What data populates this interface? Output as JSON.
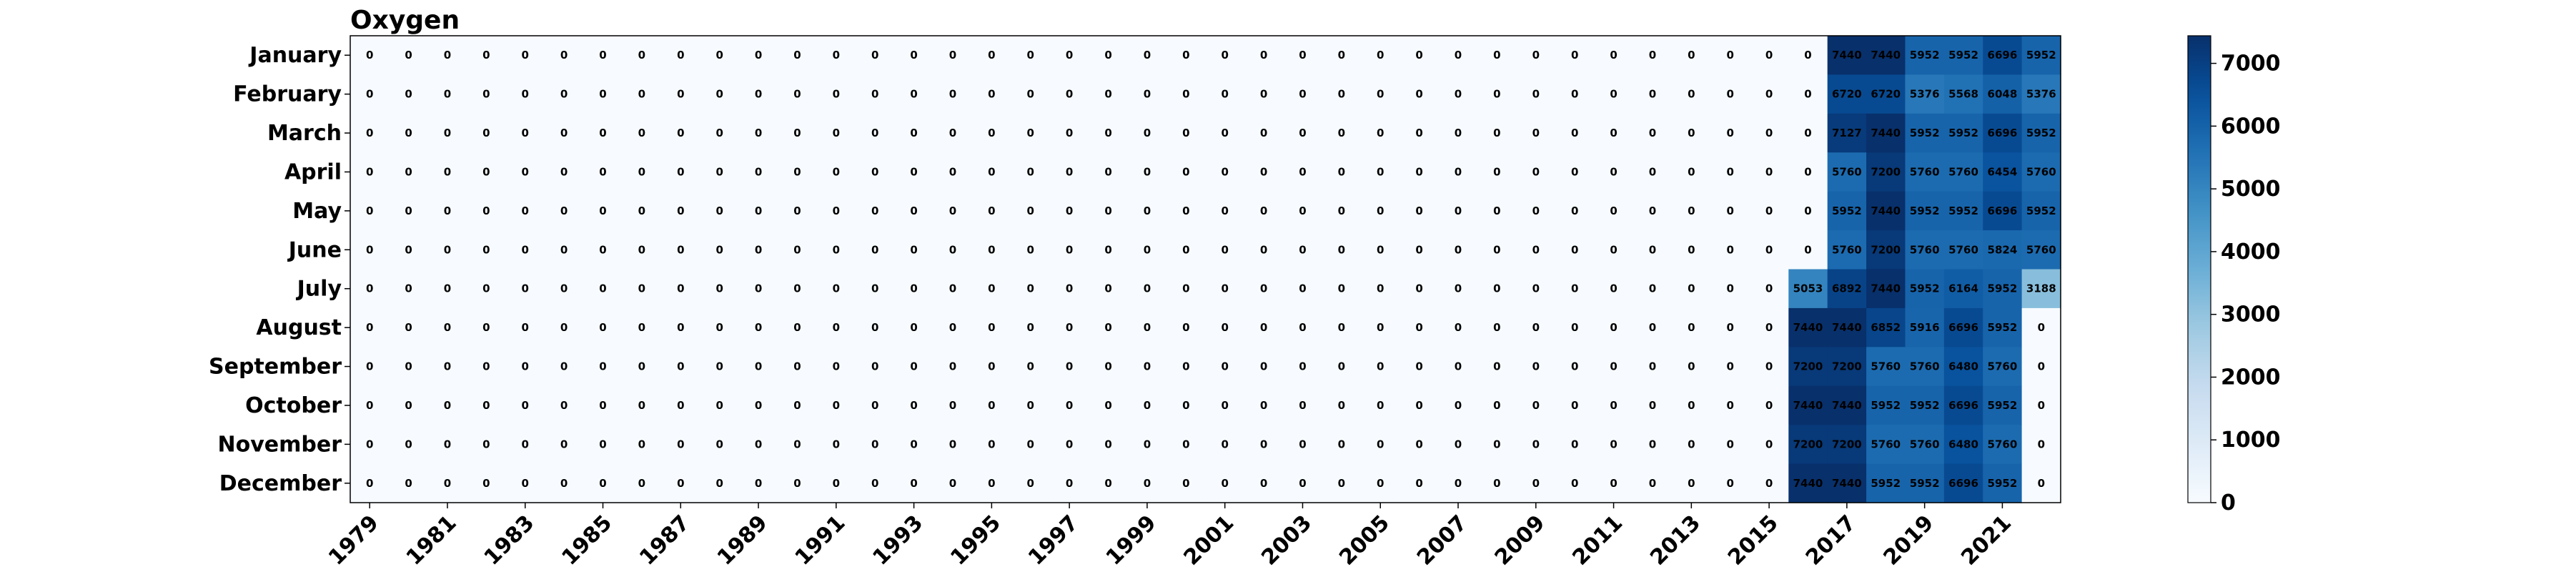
{
  "chart_data": {
    "type": "heatmap",
    "title": "Oxygen",
    "xlabel": "",
    "ylabel": "",
    "years": [
      1979,
      1980,
      1981,
      1982,
      1983,
      1984,
      1985,
      1986,
      1987,
      1988,
      1989,
      1990,
      1991,
      1992,
      1993,
      1994,
      1995,
      1996,
      1997,
      1998,
      1999,
      2000,
      2001,
      2002,
      2003,
      2004,
      2005,
      2006,
      2007,
      2008,
      2009,
      2010,
      2011,
      2012,
      2013,
      2014,
      2015,
      2016,
      2017,
      2018,
      2019,
      2020,
      2021,
      2022
    ],
    "x_tick_labels": [
      "1979",
      "1981",
      "1983",
      "1985",
      "1987",
      "1989",
      "1991",
      "1993",
      "1995",
      "1997",
      "1999",
      "2001",
      "2003",
      "2005",
      "2007",
      "2009",
      "2011",
      "2013",
      "2015",
      "2017",
      "2019",
      "2021"
    ],
    "months": [
      "January",
      "February",
      "March",
      "April",
      "May",
      "June",
      "July",
      "August",
      "September",
      "October",
      "November",
      "December"
    ],
    "nonzero_values": [
      [
        0,
        7440,
        7440,
        5952,
        5952,
        6696,
        5952
      ],
      [
        0,
        6720,
        6720,
        5376,
        5568,
        6048,
        5376
      ],
      [
        0,
        7127,
        7440,
        5952,
        5952,
        6696,
        5952
      ],
      [
        0,
        5760,
        7200,
        5760,
        5760,
        6454,
        5760
      ],
      [
        0,
        5952,
        7440,
        5952,
        5952,
        6696,
        5952
      ],
      [
        0,
        5760,
        7200,
        5760,
        5760,
        5824,
        5760
      ],
      [
        5053,
        6892,
        7440,
        5952,
        6164,
        5952,
        3188
      ],
      [
        7440,
        7440,
        6852,
        5916,
        6696,
        5952,
        0
      ],
      [
        7200,
        7200,
        5760,
        5760,
        6480,
        5760,
        0
      ],
      [
        7440,
        7440,
        5952,
        5952,
        6696,
        5952,
        0
      ],
      [
        7200,
        7200,
        5760,
        5760,
        6480,
        5760,
        0
      ],
      [
        7440,
        7440,
        5952,
        5952,
        6696,
        5952,
        0
      ]
    ],
    "nonzero_start_year": 2016,
    "zero_value": 0,
    "vmin": 0,
    "vmax": 7440,
    "colormap": "Blues",
    "colorbar_ticks": [
      "0",
      "1000",
      "2000",
      "3000",
      "4000",
      "5000",
      "6000",
      "7000"
    ],
    "legend": "colorbar-right",
    "grid": false
  }
}
